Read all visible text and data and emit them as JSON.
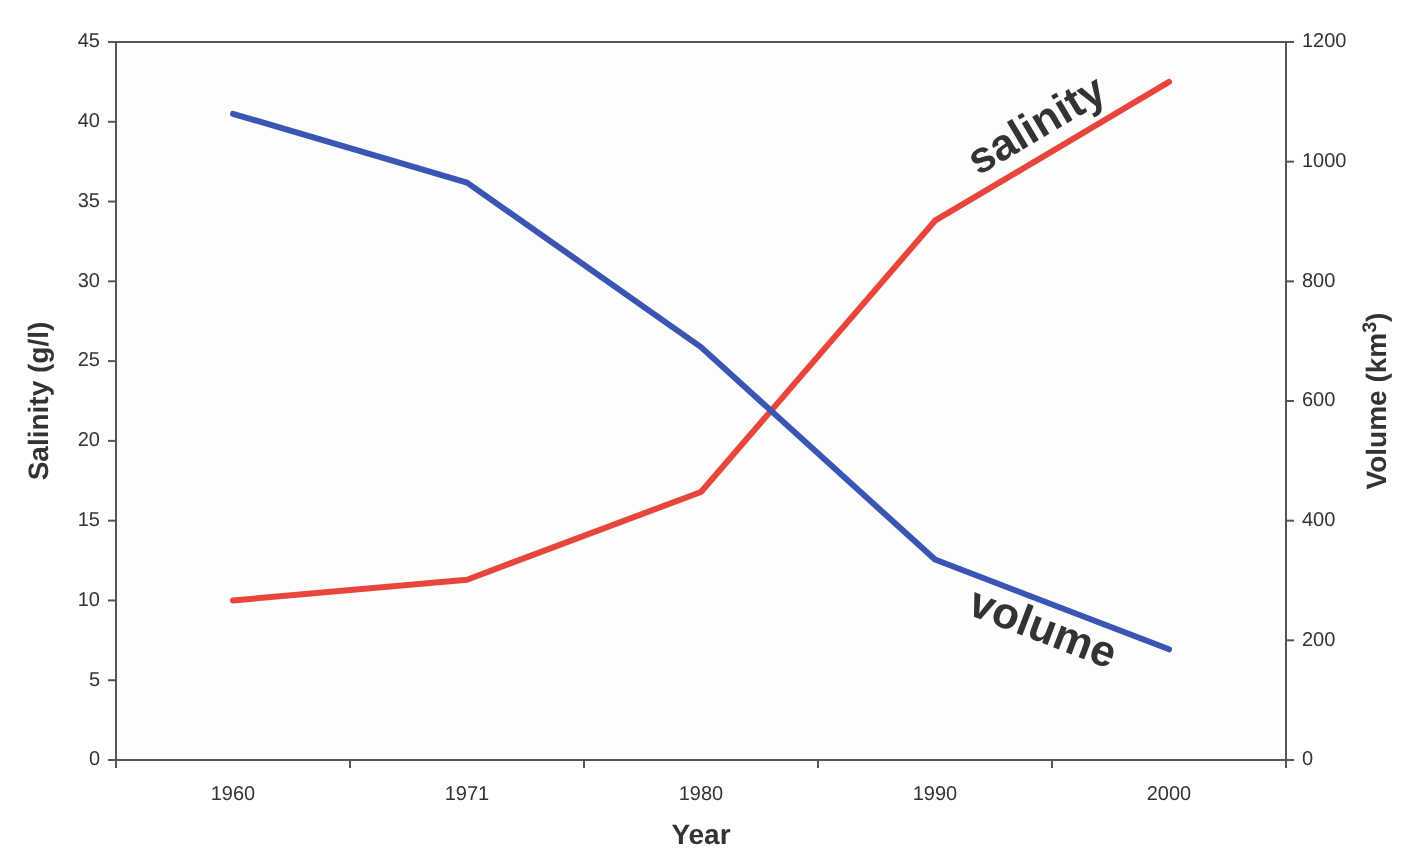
{
  "chart_data": {
    "type": "line",
    "xlabel": "Year",
    "ylabel": "Salinity (g/l)",
    "y2label": "Volume (km$^{3}$)",
    "categories": [
      "1960",
      "1971",
      "1980",
      "1990",
      "2000"
    ],
    "series": [
      {
        "name": "salinity",
        "color": "#e8453c",
        "values": [
          10,
          11.3,
          16.8,
          33.8,
          42.5
        ]
      },
      {
        "name": "volume",
        "color": "#3a55b4",
        "axis": "y2",
        "values": [
          1080,
          965,
          690,
          335,
          185
        ]
      }
    ],
    "ylim": [
      0,
      45
    ],
    "yticks": [
      0,
      5,
      10,
      15,
      20,
      25,
      30,
      35,
      40,
      45
    ],
    "y2lim": [
      0,
      1200
    ],
    "y2ticks": [
      0,
      200,
      400,
      600,
      800,
      1000,
      1200
    ],
    "grid": false,
    "marker": "none",
    "line_style": "solid"
  }
}
